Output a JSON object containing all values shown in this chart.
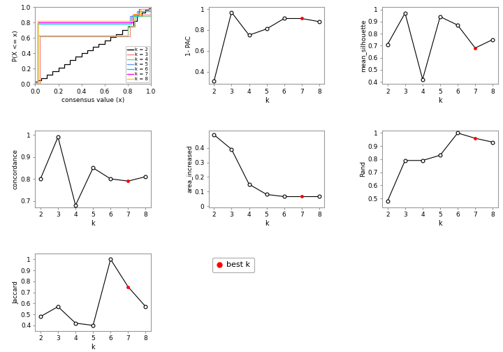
{
  "k_values": [
    2,
    3,
    4,
    5,
    6,
    7,
    8
  ],
  "best_k": 7,
  "one_pac": [
    0.31,
    0.97,
    0.75,
    0.81,
    0.91,
    0.91,
    0.88
  ],
  "mean_silhouette": [
    0.71,
    0.97,
    0.42,
    0.94,
    0.87,
    0.68,
    0.75
  ],
  "concordance": [
    0.8,
    0.99,
    0.68,
    0.85,
    0.8,
    0.79,
    0.81
  ],
  "area_increased": [
    0.49,
    0.39,
    0.15,
    0.08,
    0.065,
    0.065,
    0.065
  ],
  "rand": [
    0.48,
    0.79,
    0.79,
    0.83,
    1.0,
    0.96,
    0.93
  ],
  "jaccard": [
    0.48,
    0.57,
    0.42,
    0.4,
    1.0,
    0.75,
    0.57
  ],
  "ecdf_colors": [
    "#000000",
    "#FF8080",
    "#80CC80",
    "#6699FF",
    "#00CCCC",
    "#FF00FF",
    "#FFCC00"
  ],
  "ecdf_labels": [
    "k = 2",
    "k = 3",
    "k = 4",
    "k = 5",
    "k = 6",
    "k = 7",
    "k = 8"
  ],
  "background": "#FFFFFF",
  "line_color": "#000000",
  "best_k_color": "#FF0000",
  "ylabel_ecdf": "P(X <= x)",
  "xlabel_ecdf": "consensus value (x)",
  "ylabel_1pac": "1- PAC",
  "ylabel_sil": "mean_silhouette",
  "ylabel_conc": "concordance",
  "ylabel_area": "area_increased",
  "ylabel_rand": "Rand",
  "ylabel_jacc": "Jaccard",
  "xlabel_k": "k",
  "legend_label": "best k"
}
